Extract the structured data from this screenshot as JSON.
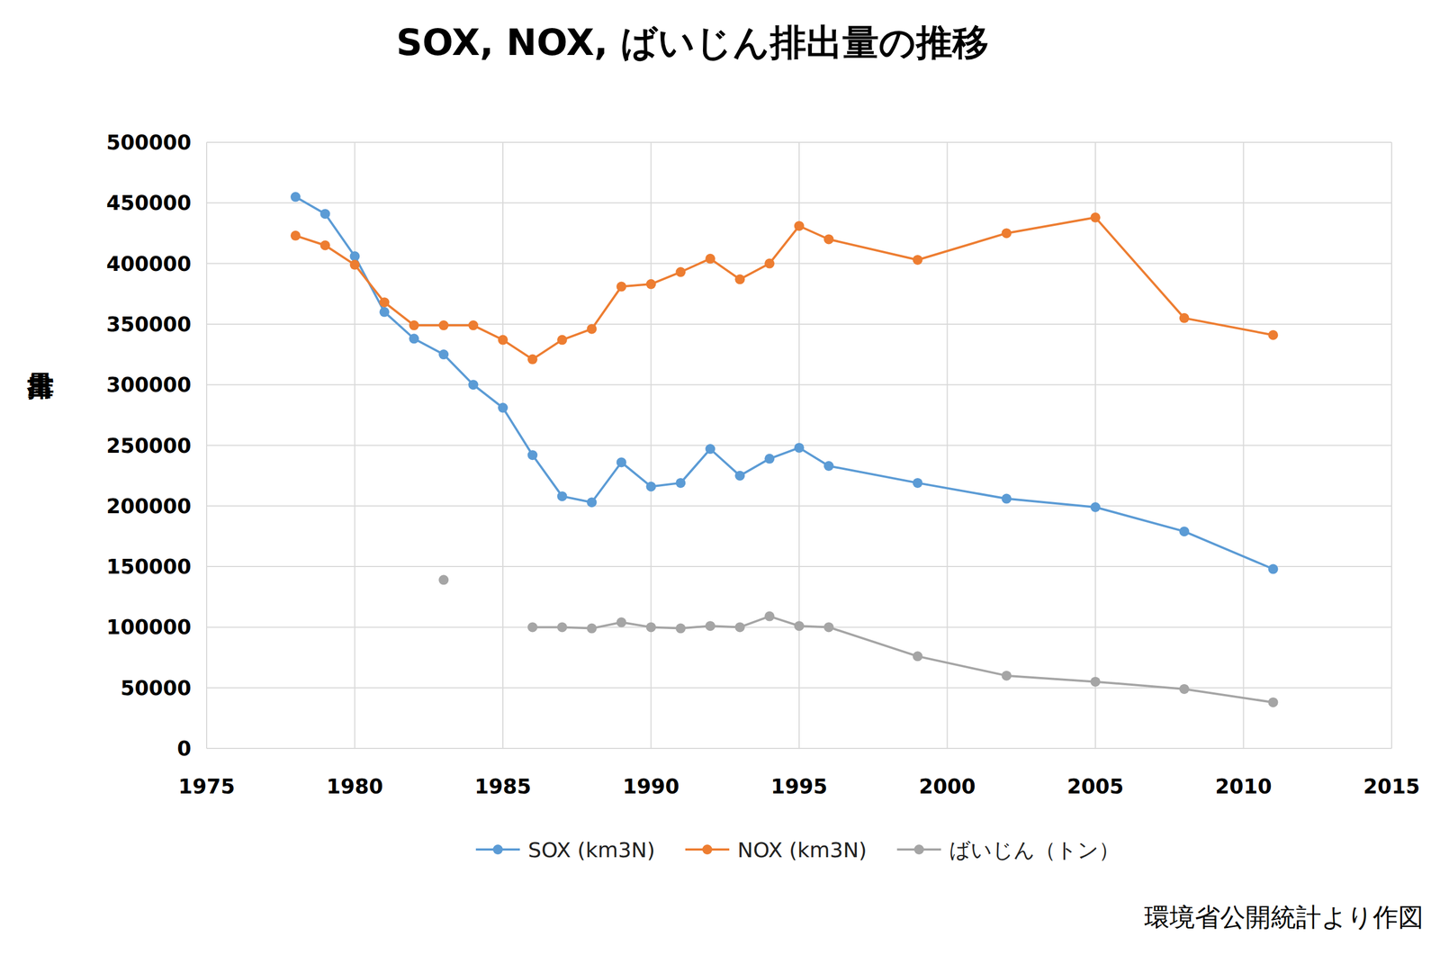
{
  "chart_data": {
    "type": "line",
    "title": "SOX, NOX, ばいじん排出量の推移",
    "y_label": "排出量",
    "note": "環境省公開統計より作図",
    "x": [
      1978,
      1979,
      1980,
      1981,
      1982,
      1983,
      1984,
      1985,
      1986,
      1987,
      1988,
      1989,
      1990,
      1991,
      1992,
      1993,
      1994,
      1995,
      1996,
      1999,
      2002,
      2005,
      2008,
      2011
    ],
    "series": [
      {
        "name": "SOX (km3N)",
        "color": "#5b9bd5",
        "marker": "circle",
        "values": [
          455000,
          441000,
          406000,
          360000,
          338000,
          325000,
          300000,
          281000,
          242000,
          208000,
          203000,
          236000,
          216000,
          219000,
          247000,
          225000,
          239000,
          248000,
          233000,
          219000,
          206000,
          199000,
          179000,
          148000
        ]
      },
      {
        "name": "NOX (km3N)",
        "color": "#ed7d31",
        "marker": "circle",
        "values": [
          423000,
          415000,
          399000,
          368000,
          349000,
          349000,
          349000,
          337000,
          321000,
          337000,
          346000,
          381000,
          383000,
          393000,
          404000,
          387000,
          400000,
          431000,
          420000,
          403000,
          425000,
          438000,
          355000,
          341000
        ]
      },
      {
        "name": "ばいじん（トン）",
        "color": "#a5a5a5",
        "marker": "circle",
        "values": [
          null,
          null,
          null,
          null,
          null,
          139000,
          null,
          null,
          100000,
          100000,
          99000,
          104000,
          100000,
          99000,
          101000,
          100000,
          109000,
          101000,
          100000,
          76000,
          60000,
          55000,
          49000,
          38000
        ]
      }
    ],
    "xlim": [
      1975,
      2015
    ],
    "xticks": [
      1975,
      1980,
      1985,
      1990,
      1995,
      2000,
      2005,
      2010,
      2015
    ],
    "ylim": [
      0,
      500000
    ],
    "yticks": [
      0,
      50000,
      100000,
      150000,
      200000,
      250000,
      300000,
      350000,
      400000,
      450000,
      500000
    ],
    "grid": true,
    "legend": "bottom"
  }
}
